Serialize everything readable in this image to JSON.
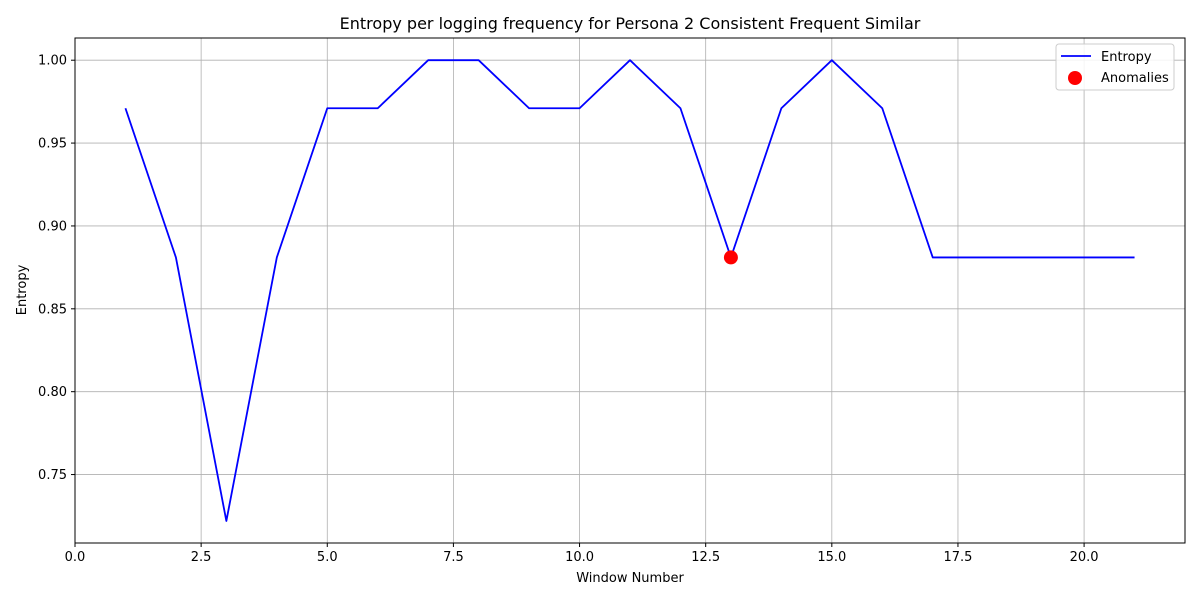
{
  "chart_data": {
    "type": "line",
    "title": "Entropy per logging frequency for Persona 2 Consistent Frequent Similar",
    "xlabel": "Window Number",
    "ylabel": "Entropy",
    "xlim": [
      0,
      22.0
    ],
    "ylim": [
      0.7087,
      1.0134
    ],
    "xticks": [
      0.0,
      2.5,
      5.0,
      7.5,
      10.0,
      12.5,
      15.0,
      17.5,
      20.0
    ],
    "xtick_labels": [
      "0.0",
      "2.5",
      "5.0",
      "7.5",
      "10.0",
      "12.5",
      "15.0",
      "17.5",
      "20.0"
    ],
    "yticks": [
      0.75,
      0.8,
      0.85,
      0.9,
      0.95,
      1.0
    ],
    "ytick_labels": [
      "0.75",
      "0.80",
      "0.85",
      "0.90",
      "0.95",
      "1.00"
    ],
    "grid": true,
    "legend": "top-right",
    "series": [
      {
        "name": "Entropy",
        "kind": "line",
        "color": "#0000ff",
        "x": [
          1,
          2,
          3,
          4,
          5,
          6,
          7,
          8,
          9,
          10,
          11,
          12,
          13,
          14,
          15,
          16,
          17,
          18,
          19,
          20,
          21
        ],
        "y": [
          0.971,
          0.881,
          0.722,
          0.881,
          0.971,
          0.971,
          1.0,
          1.0,
          0.971,
          0.971,
          1.0,
          0.971,
          0.881,
          0.971,
          1.0,
          0.971,
          0.881,
          0.881,
          0.881,
          0.881,
          0.881
        ]
      },
      {
        "name": "Anomalies",
        "kind": "scatter",
        "color": "#ff0000",
        "x": [
          13
        ],
        "y": [
          0.881
        ]
      }
    ]
  }
}
